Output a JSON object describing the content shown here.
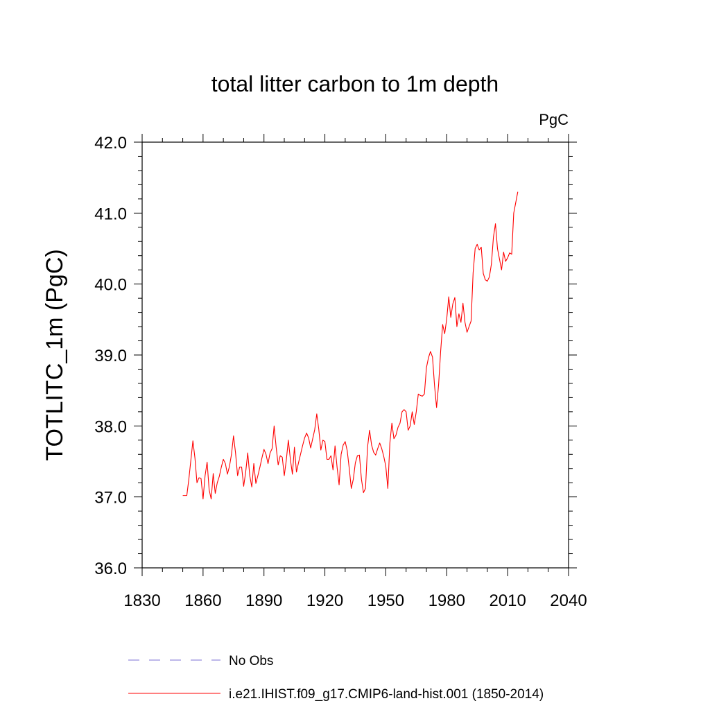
{
  "chart_data": {
    "type": "line",
    "title": "total litter carbon to 1m depth",
    "units_label": "PgC",
    "ylabel": "TOTLITC_1m  (PgC)",
    "xlabel": "",
    "xlim": [
      1830,
      2040
    ],
    "ylim": [
      36.0,
      42.0
    ],
    "x_ticks": [
      1830,
      1860,
      1890,
      1920,
      1950,
      1980,
      2010,
      2040
    ],
    "x_tick_labels": [
      "1830",
      "1860",
      "1890",
      "1920",
      "1950",
      "1980",
      "2010",
      "2040"
    ],
    "y_ticks": [
      36.0,
      37.0,
      38.0,
      39.0,
      40.0,
      41.0,
      42.0
    ],
    "y_tick_labels": [
      "36.0",
      "37.0",
      "38.0",
      "39.0",
      "40.0",
      "41.0",
      "42.0"
    ],
    "grid": false,
    "legend_position": "bottom",
    "series": [
      {
        "name": "No Obs",
        "style": "dashed",
        "color": "#7b6fd6",
        "values": []
      },
      {
        "name": "i.e21.IHIST.f09_g17.CMIP6-land-hist.001 (1850-2014)",
        "style": "solid",
        "color": "#ff0000",
        "start_year": 1850,
        "values": [
          37.02,
          37.02,
          37.02,
          37.25,
          37.52,
          37.79,
          37.55,
          37.2,
          37.27,
          37.26,
          36.97,
          37.3,
          37.49,
          37.1,
          36.97,
          37.33,
          37.05,
          37.2,
          37.29,
          37.42,
          37.53,
          37.47,
          37.32,
          37.43,
          37.6,
          37.86,
          37.62,
          37.3,
          37.42,
          37.42,
          37.15,
          37.35,
          37.62,
          37.3,
          37.14,
          37.47,
          37.19,
          37.3,
          37.42,
          37.55,
          37.67,
          37.6,
          37.47,
          37.62,
          37.68,
          38.0,
          37.7,
          37.45,
          37.58,
          37.56,
          37.3,
          37.52,
          37.8,
          37.53,
          37.32,
          37.7,
          37.35,
          37.48,
          37.6,
          37.72,
          37.83,
          37.9,
          37.83,
          37.69,
          37.82,
          37.95,
          38.17,
          37.95,
          37.66,
          37.8,
          37.78,
          37.53,
          37.53,
          37.58,
          37.38,
          37.72,
          37.42,
          37.17,
          37.6,
          37.73,
          37.78,
          37.65,
          37.4,
          37.12,
          37.25,
          37.48,
          37.58,
          37.59,
          37.25,
          37.06,
          37.12,
          37.7,
          37.94,
          37.73,
          37.63,
          37.59,
          37.68,
          37.76,
          37.68,
          37.57,
          37.43,
          37.12,
          37.76,
          38.04,
          37.82,
          37.87,
          37.98,
          38.04,
          38.2,
          38.23,
          38.2,
          37.94,
          38.0,
          38.2,
          38.02,
          38.2,
          38.45,
          38.43,
          38.42,
          38.45,
          38.82,
          38.96,
          39.05,
          38.97,
          38.57,
          38.26,
          38.58,
          39.05,
          39.43,
          39.3,
          39.51,
          39.82,
          39.53,
          39.72,
          39.81,
          39.4,
          39.58,
          39.46,
          39.73,
          39.46,
          39.32,
          39.4,
          39.48,
          40.16,
          40.5,
          40.56,
          40.48,
          40.52,
          40.15,
          40.06,
          40.04,
          40.1,
          40.28,
          40.66,
          40.85,
          40.5,
          40.35,
          40.2,
          40.45,
          40.32,
          40.37,
          40.44,
          40.42,
          41.0,
          41.15,
          41.3
        ]
      }
    ]
  }
}
